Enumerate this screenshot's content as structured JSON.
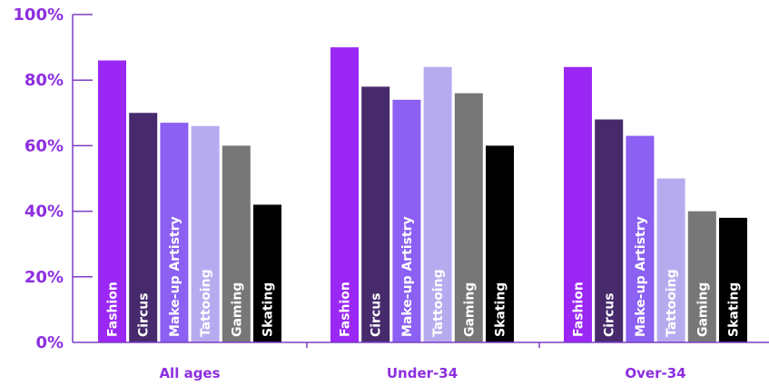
{
  "chart_data": {
    "type": "bar",
    "categories": [
      "All ages",
      "Under-34",
      "Over-34"
    ],
    "series": [
      {
        "name": "Fashion",
        "values": [
          86,
          90,
          84
        ]
      },
      {
        "name": "Circus",
        "values": [
          70,
          78,
          68
        ]
      },
      {
        "name": "Make-up Artistry",
        "values": [
          67,
          74,
          63
        ]
      },
      {
        "name": "Tattooing",
        "values": [
          66,
          84,
          50
        ]
      },
      {
        "name": "Gaming",
        "values": [
          60,
          76,
          40
        ]
      },
      {
        "name": "Skating",
        "values": [
          42,
          60,
          38
        ]
      }
    ],
    "title": "",
    "xlabel": "",
    "ylabel": "",
    "ylim": [
      0,
      100
    ],
    "yticks": [
      "0%",
      "20%",
      "40%",
      "60%",
      "80%",
      "100%"
    ],
    "grid": false,
    "legend": "none",
    "colors": {
      "Fashion": "#9b27f5",
      "Circus": "#472a6c",
      "Make-up Artistry": "#8b60f2",
      "Tattooing": "#b7abf0",
      "Gaming": "#777777",
      "Skating": "#000000",
      "axis_text": "#8d2ee0",
      "axis_line": "#7b3dc4",
      "bar_text_dark": "#ffffff"
    }
  }
}
